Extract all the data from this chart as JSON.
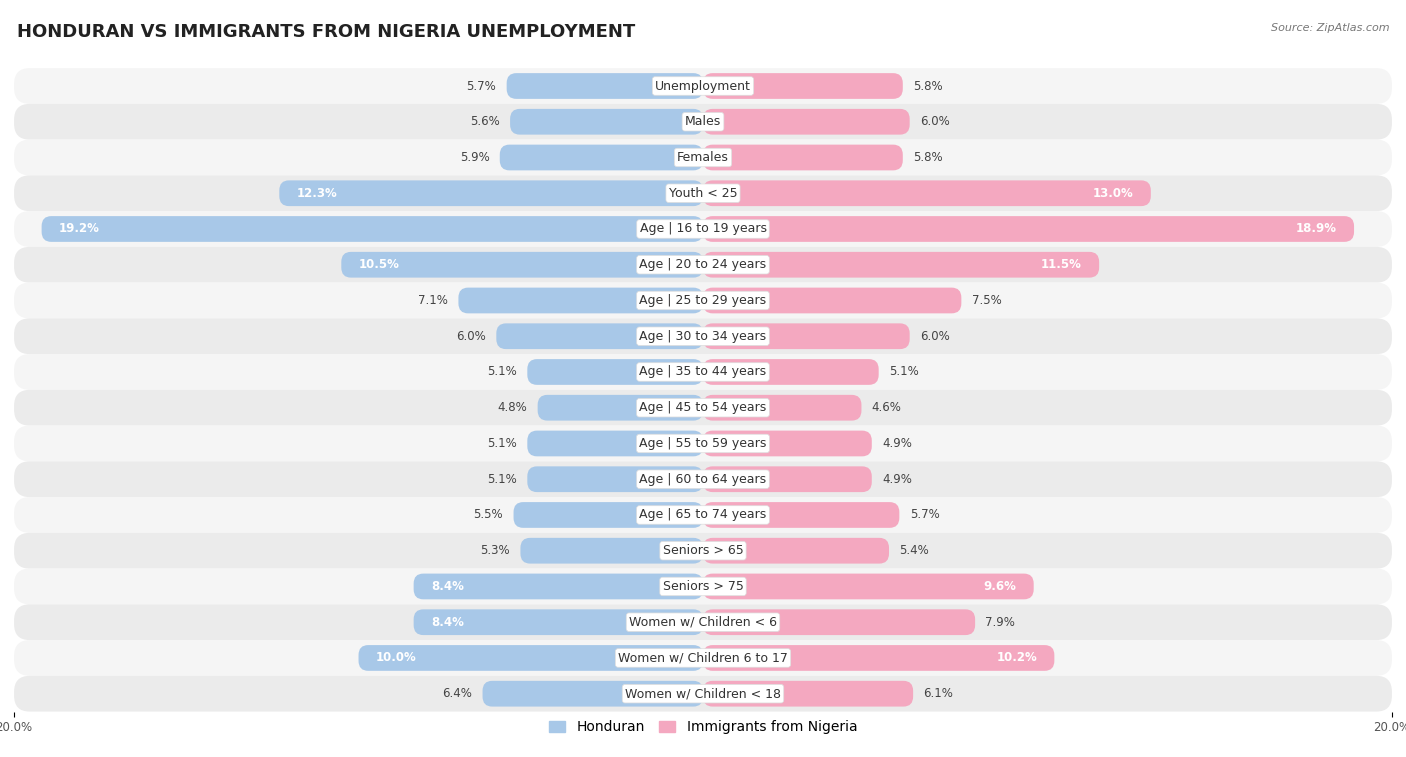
{
  "title": "HONDURAN VS IMMIGRANTS FROM NIGERIA UNEMPLOYMENT",
  "source": "Source: ZipAtlas.com",
  "categories": [
    "Unemployment",
    "Males",
    "Females",
    "Youth < 25",
    "Age | 16 to 19 years",
    "Age | 20 to 24 years",
    "Age | 25 to 29 years",
    "Age | 30 to 34 years",
    "Age | 35 to 44 years",
    "Age | 45 to 54 years",
    "Age | 55 to 59 years",
    "Age | 60 to 64 years",
    "Age | 65 to 74 years",
    "Seniors > 65",
    "Seniors > 75",
    "Women w/ Children < 6",
    "Women w/ Children 6 to 17",
    "Women w/ Children < 18"
  ],
  "honduran": [
    5.7,
    5.6,
    5.9,
    12.3,
    19.2,
    10.5,
    7.1,
    6.0,
    5.1,
    4.8,
    5.1,
    5.1,
    5.5,
    5.3,
    8.4,
    8.4,
    10.0,
    6.4
  ],
  "nigeria": [
    5.8,
    6.0,
    5.8,
    13.0,
    18.9,
    11.5,
    7.5,
    6.0,
    5.1,
    4.6,
    4.9,
    4.9,
    5.7,
    5.4,
    9.6,
    7.9,
    10.2,
    6.1
  ],
  "honduran_color": "#a8c8e8",
  "nigeria_color": "#f4a8c0",
  "row_bg_odd": "#f5f5f5",
  "row_bg_even": "#ebebeb",
  "bg_color": "#ffffff",
  "max_val": 20.0,
  "bar_height": 0.72,
  "title_fontsize": 13,
  "label_fontsize": 9,
  "value_fontsize": 8.5,
  "legend_fontsize": 10,
  "axis_label_fontsize": 8.5
}
